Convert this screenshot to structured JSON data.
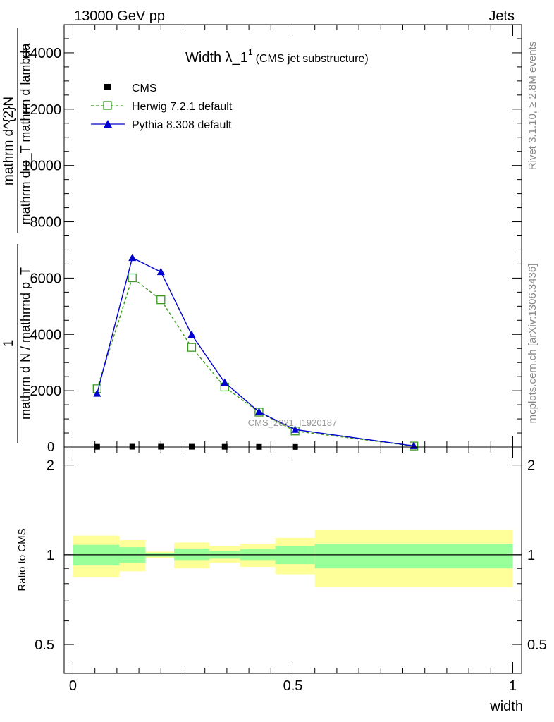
{
  "header": {
    "left": "13000 GeV pp",
    "right": "Jets"
  },
  "chart_data": [
    {
      "type": "line",
      "title": "Width λ_1",
      "title_superscript": "1",
      "title_suffix": "(CMS jet substructure)",
      "ylabel_numerator": "1",
      "ylabel_denominator": "mathrm d N / mathrmd p_T",
      "ylabel_numerator_line2": "mathrm d^{2}N",
      "ylabel_denominator_line2": "mathrm d p_T mathrm d lambda",
      "ylim": [
        0,
        15000
      ],
      "yticks": [
        2000,
        4000,
        6000,
        8000,
        10000,
        12000,
        14000
      ],
      "ytick_labels": [
        "2000",
        "4000",
        "6000",
        "8000",
        "10000",
        "12000",
        "14000"
      ],
      "ytick_zero_label": "0",
      "xlim": [
        -0.02,
        1.02
      ],
      "x": [
        0.055,
        0.135,
        0.2,
        0.27,
        0.345,
        0.423,
        0.505,
        0.775
      ],
      "series": [
        {
          "name": "CMS",
          "marker": "square-filled",
          "color": "#000000",
          "values": [
            8,
            12,
            12,
            10,
            8,
            5,
            4,
            1
          ]
        },
        {
          "name": "Herwig 7.2.1 default",
          "marker": "square-open",
          "line": "dashed",
          "color": "#3a9a1e",
          "values": [
            2070,
            6010,
            5230,
            3540,
            2130,
            1240,
            570,
            35
          ]
        },
        {
          "name": "Pythia 8.308 default",
          "marker": "triangle-filled",
          "line": "solid",
          "color": "#0000cc",
          "values": [
            1900,
            6720,
            6220,
            3990,
            2290,
            1250,
            620,
            40
          ]
        }
      ],
      "legend_placement": "top-left",
      "watermark": "CMS_2021_I1920187",
      "side_label_top": "Rivet 3.1.10, ≥ 2.8M events",
      "side_label_bottom": "mcplots.cern.ch [arXiv:1306.3436]"
    },
    {
      "type": "area",
      "ylabel": "Ratio to CMS",
      "xlabel": "width",
      "ylim": [
        0.4,
        2.3
      ],
      "log_y": true,
      "yticks": [
        0.5,
        1,
        2
      ],
      "ytick_labels": [
        "0.5",
        "1",
        "2"
      ],
      "xlim": [
        -0.02,
        1.02
      ],
      "xticks": [
        0,
        0.5,
        1
      ],
      "xtick_labels": [
        "0",
        "0.5",
        "1"
      ],
      "bins": [
        {
          "x0": 0.0,
          "x1": 0.105,
          "inner": [
            0.92,
            1.08
          ],
          "outer": [
            0.84,
            1.16
          ]
        },
        {
          "x0": 0.105,
          "x1": 0.165,
          "inner": [
            0.94,
            1.06
          ],
          "outer": [
            0.88,
            1.12
          ]
        },
        {
          "x0": 0.165,
          "x1": 0.23,
          "inner": [
            0.985,
            1.015
          ],
          "outer": [
            0.975,
            1.025
          ]
        },
        {
          "x0": 0.23,
          "x1": 0.31,
          "inner": [
            0.96,
            1.05
          ],
          "outer": [
            0.9,
            1.1
          ]
        },
        {
          "x0": 0.31,
          "x1": 0.38,
          "inner": [
            0.97,
            1.03
          ],
          "outer": [
            0.94,
            1.07
          ]
        },
        {
          "x0": 0.38,
          "x1": 0.46,
          "inner": [
            0.96,
            1.045
          ],
          "outer": [
            0.91,
            1.09
          ]
        },
        {
          "x0": 0.46,
          "x1": 0.55,
          "inner": [
            0.93,
            1.07
          ],
          "outer": [
            0.86,
            1.14
          ]
        },
        {
          "x0": 0.55,
          "x1": 1.0,
          "inner": [
            0.9,
            1.09
          ],
          "outer": [
            0.78,
            1.21
          ]
        }
      ],
      "colors": {
        "inner": "#99ff99",
        "outer": "#ffff99",
        "reference": "#000000"
      }
    }
  ]
}
